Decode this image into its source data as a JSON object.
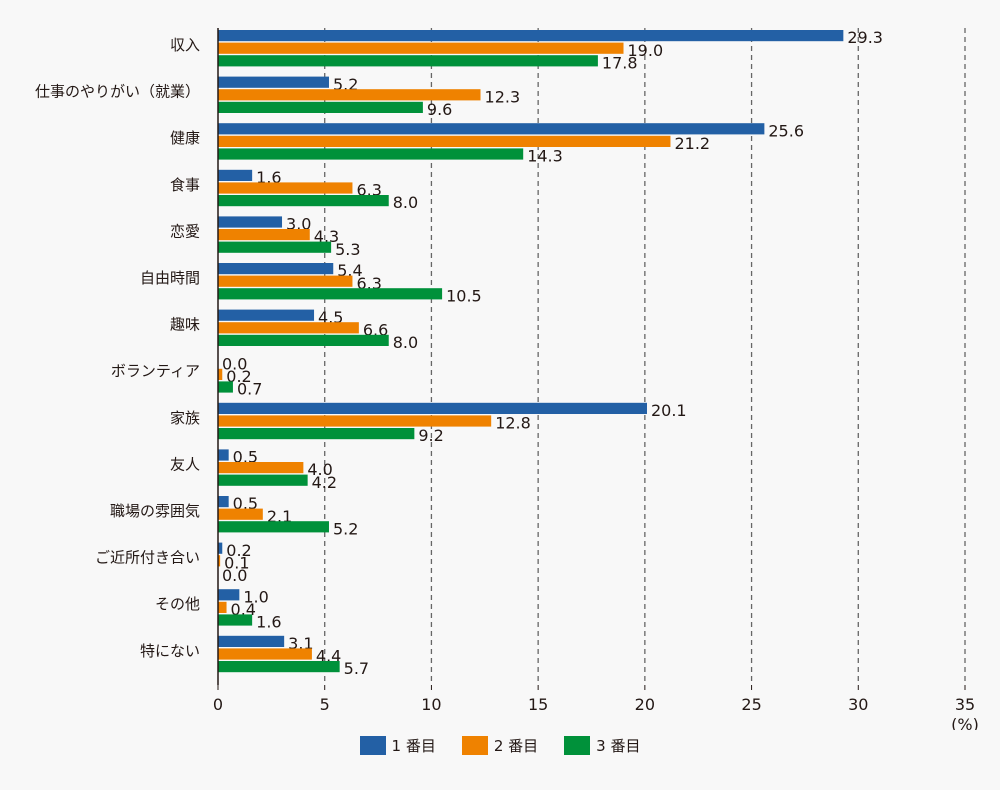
{
  "chart_data": {
    "type": "bar",
    "orientation": "horizontal",
    "title": "",
    "xlabel": "",
    "ylabel": "",
    "unit_label": "(%)",
    "xlim": [
      0,
      35
    ],
    "xticks": [
      0,
      5,
      10,
      15,
      20,
      25,
      30,
      35
    ],
    "grid": "vertical-dashed",
    "legend_position": "bottom",
    "categories": [
      "収入",
      "仕事のやりがい（就業）",
      "健康",
      "食事",
      "恋愛",
      "自由時間",
      "趣味",
      "ボランティア",
      "家族",
      "友人",
      "職場の雰囲気",
      "ご近所付き合い",
      "その他",
      "特にない"
    ],
    "series": [
      {
        "name": "1 番目",
        "color": "#2360a5",
        "values": [
          29.3,
          5.2,
          25.6,
          1.6,
          3.0,
          5.4,
          4.5,
          0.0,
          20.1,
          0.5,
          0.5,
          0.2,
          1.0,
          3.1
        ]
      },
      {
        "name": "2 番目",
        "color": "#ef8200",
        "values": [
          19.0,
          12.3,
          21.2,
          6.3,
          4.3,
          6.3,
          6.6,
          0.2,
          12.8,
          4.0,
          2.1,
          0.1,
          0.4,
          4.4
        ]
      },
      {
        "name": "3 番目",
        "color": "#00913a",
        "values": [
          17.8,
          9.6,
          14.3,
          8.0,
          5.3,
          10.5,
          8.0,
          0.7,
          9.2,
          4.2,
          5.2,
          0.0,
          1.6,
          5.7
        ]
      }
    ],
    "value_labels": [
      [
        "29.3",
        "5.2",
        "25.6",
        "1.6",
        "3.0",
        "5.4",
        "4.5",
        "0.0",
        "20.1",
        "0.5",
        "0.5",
        "0.2",
        "1.0",
        "3.1"
      ],
      [
        "19.0",
        "12.3",
        "21.2",
        "6.3",
        "4.3",
        "6.3",
        "6.6",
        "0.2",
        "12.8",
        "4.0",
        "2.1",
        "0.1",
        "0.4",
        "4.4"
      ],
      [
        "17.8",
        "9.6",
        "14.3",
        "8.0",
        "5.3",
        "10.5",
        "8.0",
        "0.7",
        "9.2",
        "4.2",
        "5.2",
        "0.0",
        "1.6",
        "5.7"
      ]
    ]
  }
}
